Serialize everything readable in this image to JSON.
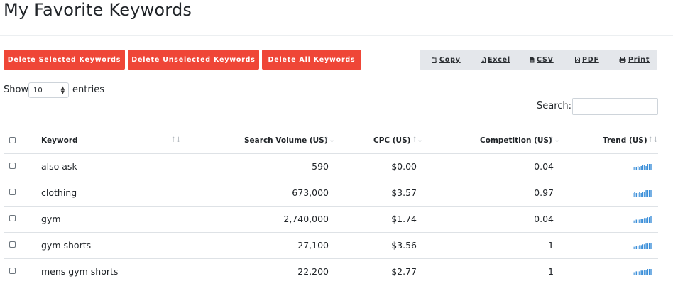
{
  "page": {
    "title": "My Favorite Keywords"
  },
  "actions": {
    "delete_selected": "Delete Selected Keywords",
    "delete_unselected": "Delete Unselected Keywords",
    "delete_all": "Delete All Keywords"
  },
  "export": {
    "copy": "Copy",
    "excel": "Excel",
    "csv": "CSV",
    "pdf": "PDF",
    "print": "Print"
  },
  "length": {
    "show": "Show",
    "value": "10",
    "entries": "entries"
  },
  "search": {
    "label": "Search:"
  },
  "table": {
    "columns": [
      "Keyword",
      "Search Volume (US)",
      "CPC (US)",
      "Competition (US)",
      "Trend (US)"
    ],
    "rows": [
      {
        "keyword": "also ask",
        "volume": "590",
        "cpc": "$0.00",
        "competition": "0.04",
        "trend": [
          4,
          5,
          5,
          6,
          5,
          6,
          7,
          7,
          6,
          9,
          9,
          9
        ]
      },
      {
        "keyword": "clothing",
        "volume": "673,000",
        "cpc": "$3.57",
        "competition": "0.97",
        "trend": [
          5,
          6,
          5,
          5,
          6,
          5,
          6,
          6,
          9,
          9,
          9,
          9
        ]
      },
      {
        "keyword": "gym",
        "volume": "2,740,000",
        "cpc": "$1.74",
        "competition": "0.04",
        "trend": [
          3,
          3,
          4,
          4,
          4,
          5,
          5,
          6,
          6,
          7,
          7,
          8
        ]
      },
      {
        "keyword": "gym shorts",
        "volume": "27,100",
        "cpc": "$3.56",
        "competition": "1",
        "trend": [
          3,
          3,
          4,
          4,
          5,
          5,
          6,
          6,
          7,
          7,
          8,
          8
        ]
      },
      {
        "keyword": "mens gym shorts",
        "volume": "22,200",
        "cpc": "$2.77",
        "competition": "1",
        "trend": [
          4,
          4,
          5,
          5,
          5,
          6,
          6,
          7,
          7,
          8,
          8,
          8
        ]
      }
    ]
  },
  "colors": {
    "danger": "#ef4637",
    "trend": "#3b8fd9",
    "export_bg": "#e4e7eb"
  }
}
